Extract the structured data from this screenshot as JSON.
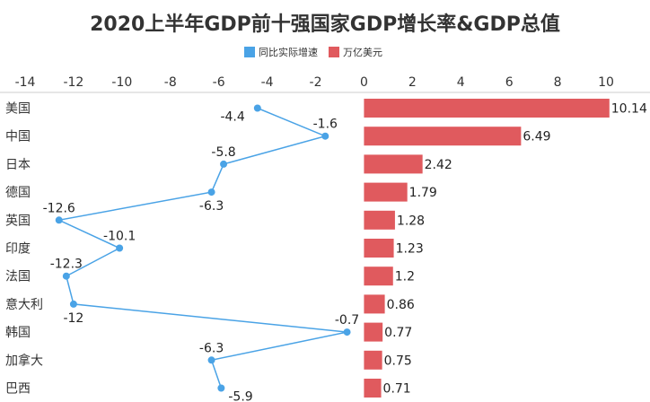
{
  "chart_data": {
    "type": "bar",
    "title": "2020上半年GDP前十强国家GDP增长率&GDP总值",
    "categories": [
      "美国",
      "中国",
      "日本",
      "德国",
      "英国",
      "印度",
      "法国",
      "意大利",
      "韩国",
      "加拿大",
      "巴西"
    ],
    "series": [
      {
        "name": "同比实际增速",
        "kind": "line",
        "color": "#4aa3e6",
        "values": [
          -4.4,
          -1.6,
          -5.8,
          -6.3,
          -12.6,
          -10.1,
          -12.3,
          -12,
          -0.7,
          -6.3,
          -5.9
        ],
        "label_positions": [
          "left",
          "above",
          "above",
          "below",
          "above",
          "above",
          "above",
          "below",
          "above",
          "above",
          "right"
        ]
      },
      {
        "name": "万亿美元",
        "kind": "bar",
        "color": "#e05a5e",
        "values": [
          10.14,
          6.49,
          2.42,
          1.79,
          1.28,
          1.23,
          1.2,
          0.86,
          0.77,
          0.75,
          0.71
        ]
      }
    ],
    "x_axis": {
      "min": -14,
      "max": 10,
      "ticks": [
        -14,
        -12,
        -10,
        -8,
        -6,
        -4,
        -2,
        0,
        2,
        4,
        6,
        8,
        10
      ],
      "position": "top"
    },
    "grid": false,
    "legend_position": "top-center"
  }
}
